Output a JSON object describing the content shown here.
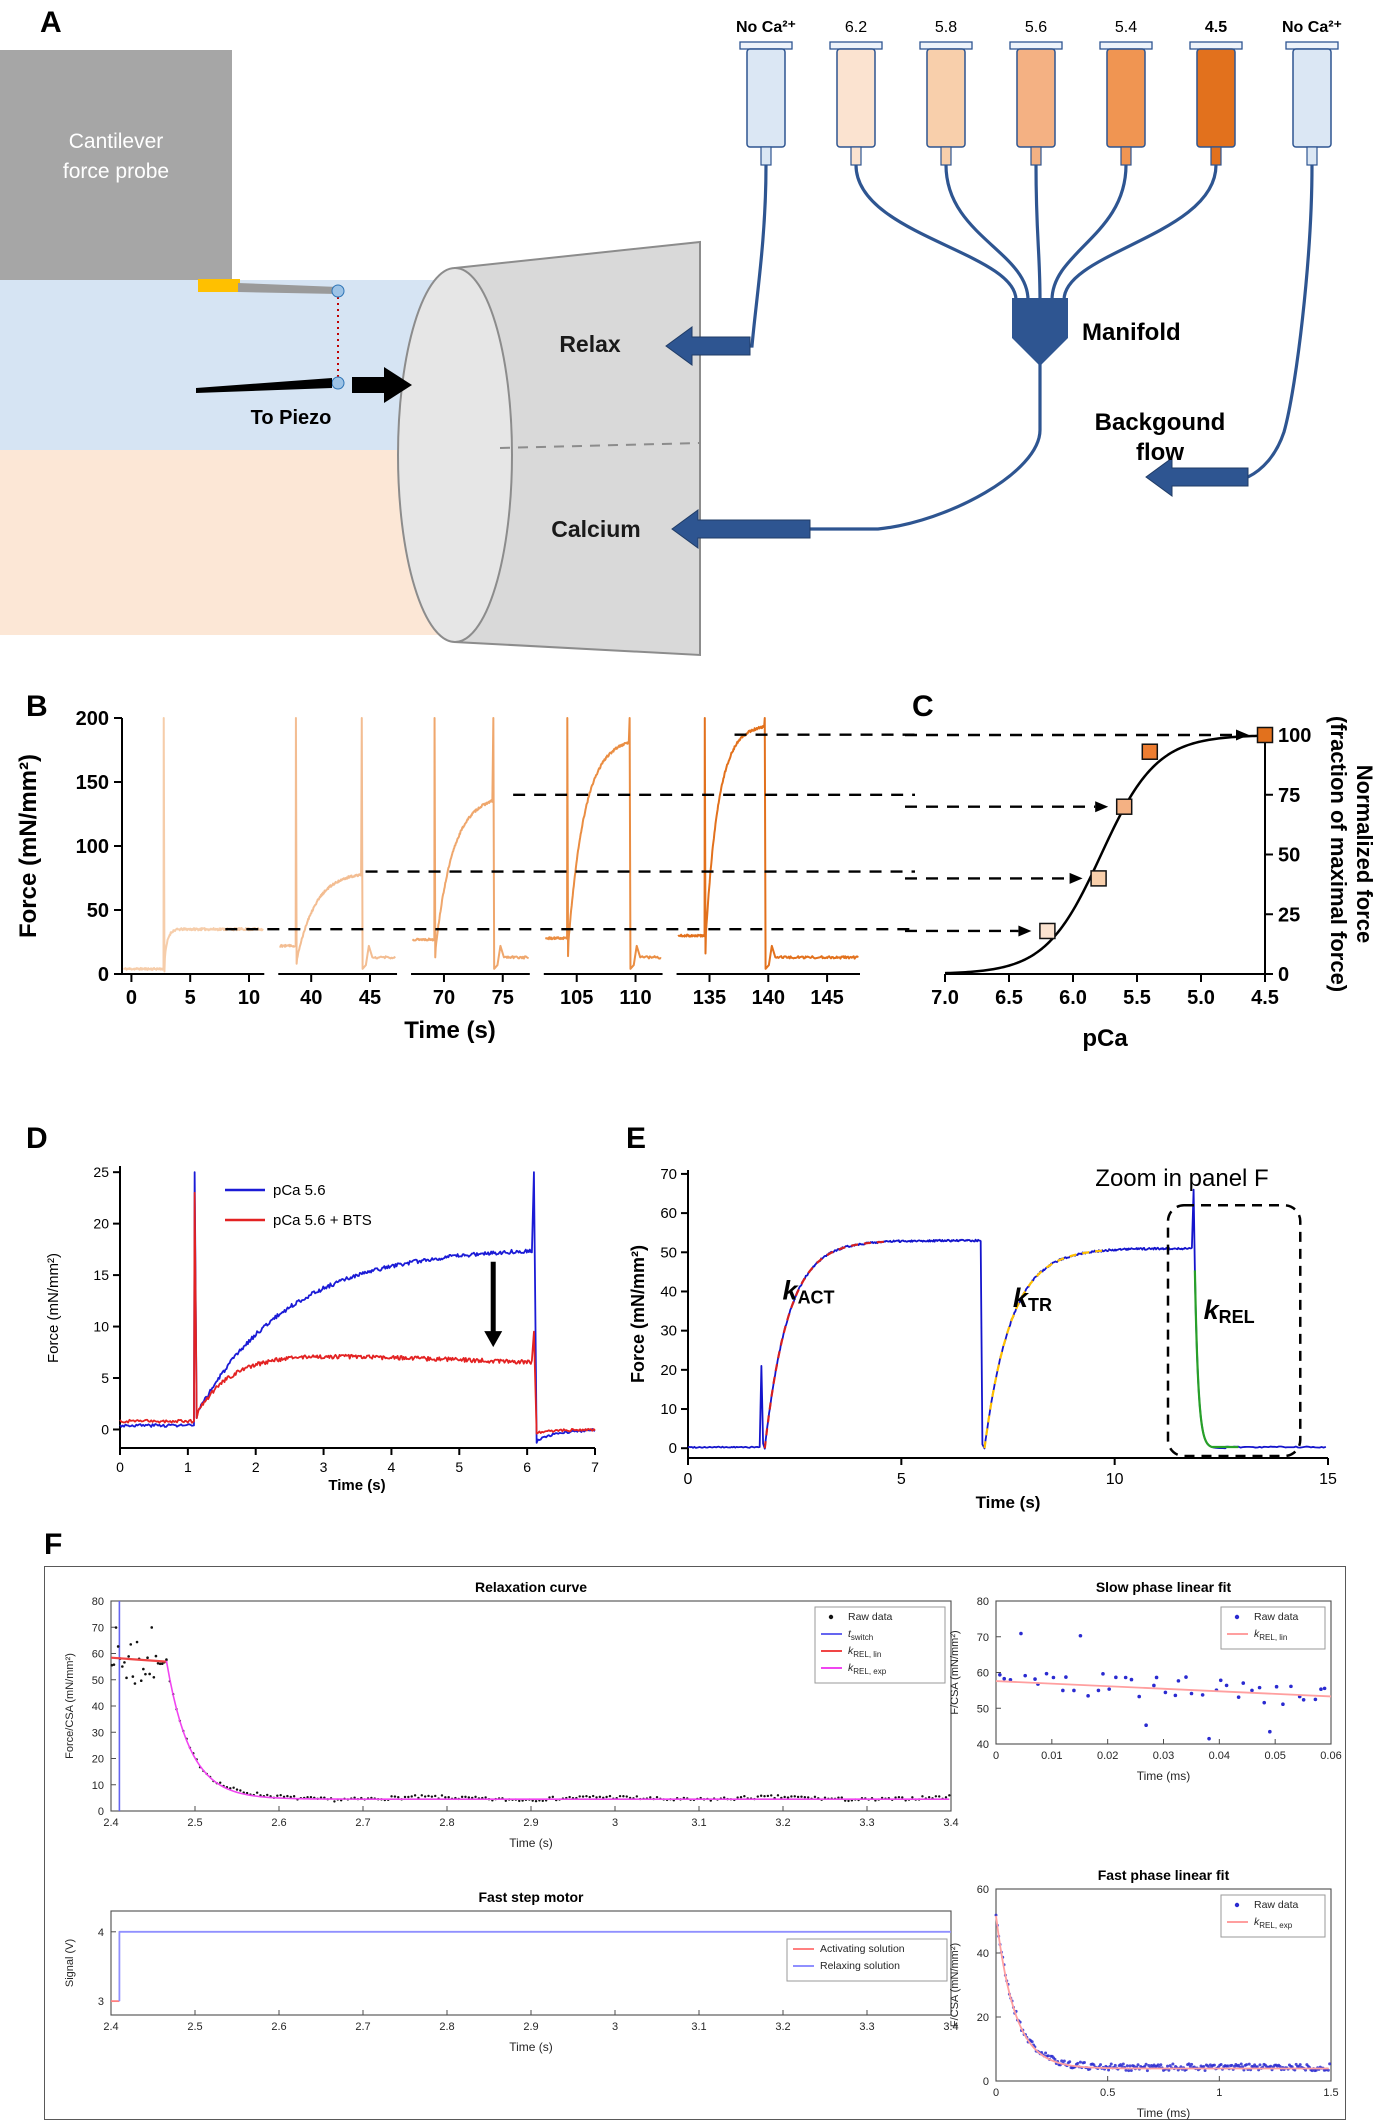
{
  "figure": {
    "panel_labels": {
      "a": "A",
      "b": "B",
      "c": "C",
      "d": "D",
      "e": "E",
      "f": "F"
    }
  },
  "panel_a": {
    "cantilever_line1": "Cantilever",
    "cantilever_line2": "force probe",
    "to_piezo": "To Piezo",
    "relax": "Relax",
    "calcium": "Calcium",
    "manifold": "Manifold",
    "background_line1": "Backgound",
    "background_line2": "flow",
    "syringes": [
      {
        "label": "No Ca²⁺",
        "bold": true,
        "fill": "#dbe7f4"
      },
      {
        "label": "6.2",
        "bold": false,
        "fill": "#fbe3d0"
      },
      {
        "label": "5.8",
        "bold": false,
        "fill": "#f8cfab"
      },
      {
        "label": "5.6",
        "bold": false,
        "fill": "#f4b183"
      },
      {
        "label": "5.4",
        "bold": false,
        "fill": "#f09552"
      },
      {
        "label": "4.5",
        "bold": true,
        "fill": "#e2711d"
      },
      {
        "label": "No Ca²⁺",
        "bold": true,
        "fill": "#dbe7f4"
      }
    ],
    "colors": {
      "tube": "#2e5591",
      "gray_box": "#a6a6a6",
      "funnel": "#d9d9d9",
      "bath_top": "#d6e4f3",
      "bath_bottom": "#fce7d6",
      "gold": "#ffc000",
      "bead": "#9dc3e6"
    }
  },
  "chart_data": [
    {
      "id": "panel_b",
      "type": "line",
      "xlabel": "Time (s)",
      "ylabel": "Force (mN/mm²)",
      "ylim": [
        0,
        200
      ],
      "yticks": [
        0,
        50,
        100,
        150,
        200
      ],
      "spike_peak": 200,
      "segments": [
        {
          "trange": [
            -0.8,
            11.3
          ],
          "ticks": [
            0,
            5,
            10
          ],
          "color": "#f6cdaa",
          "baseline": 4,
          "spike_t": 2.75,
          "plateau": 35,
          "rise_tau": 0.25,
          "drop_t": null
        },
        {
          "trange": [
            37.2,
            47.3
          ],
          "ticks": [
            40,
            45
          ],
          "color": "#f3bd92",
          "baseline": 22,
          "spike_t": 38.7,
          "plateau": 80,
          "rise_tau": 1.6,
          "drop_t": 44.3
        },
        {
          "trange": [
            67.2,
            77.3
          ],
          "ticks": [
            70,
            75
          ],
          "color": "#efa76d",
          "baseline": 27,
          "spike_t": 69.2,
          "plateau": 140,
          "rise_tau": 1.5,
          "drop_t": 74.2
        },
        {
          "trange": [
            102.2,
            112.3
          ],
          "ticks": [
            105,
            110
          ],
          "color": "#ea8d42",
          "baseline": 28,
          "spike_t": 104.2,
          "plateau": 185,
          "rise_tau": 1.4,
          "drop_t": 109.5
        },
        {
          "trange": [
            132.2,
            147.8
          ],
          "ticks": [
            135,
            140,
            145
          ],
          "color": "#e2711d",
          "baseline": 30,
          "spike_t": 134.6,
          "plateau": 195,
          "rise_tau": 1.1,
          "drop_t": 139.7
        }
      ],
      "dashed_lines": [
        {
          "y": 35,
          "x_start_frac": 0.14
        },
        {
          "y": 80,
          "x_start_frac": 0.33
        },
        {
          "y": 140,
          "x_start_frac": 0.53
        },
        {
          "y": 187,
          "x_start_frac": 0.83
        }
      ]
    },
    {
      "id": "panel_c",
      "type": "scatter",
      "xlabel": "pCa",
      "ylabel_line1": "Normalized force",
      "ylabel_line2": "(fraction of maximal force)",
      "xticks": [
        "7.0",
        "6.5",
        "6.0",
        "5.5",
        "5.0",
        "4.5"
      ],
      "xlim": [
        7.0,
        4.5
      ],
      "ylim": [
        0,
        100
      ],
      "yticks": [
        0,
        25,
        50,
        75,
        100
      ],
      "sigmoid": {
        "pca50": 5.78,
        "hill": 2.0
      },
      "points": [
        {
          "pca": 6.2,
          "value": 18,
          "fill": "#fbe3d0"
        },
        {
          "pca": 5.8,
          "value": 40,
          "fill": "#f8cfab"
        },
        {
          "pca": 5.6,
          "value": 70,
          "fill": "#f4b183"
        },
        {
          "pca": 5.4,
          "value": 93,
          "fill": "#ed7d31"
        },
        {
          "pca": 4.5,
          "value": 100,
          "fill": "#e2711d"
        }
      ],
      "arrows_to": [
        6.2,
        5.8,
        5.6,
        4.5
      ]
    },
    {
      "id": "panel_d",
      "type": "line",
      "xlabel": "Time (s)",
      "ylabel": "Force (mN/mm²)",
      "xlim": [
        0,
        7
      ],
      "xticks": [
        0,
        1,
        2,
        3,
        4,
        5,
        6,
        7
      ],
      "ylim": [
        0,
        25
      ],
      "yticks": [
        0,
        5,
        10,
        15,
        20,
        25
      ],
      "legend": [
        {
          "label": "pCa 5.6",
          "color": "#1b1bd6"
        },
        {
          "label": "pCa 5.6 + BTS",
          "color": "#e32222"
        }
      ],
      "series": [
        {
          "name": "pCa 5.6",
          "color": "#1b1bd6",
          "baseline": 0.4,
          "spike_t": 1.1,
          "spike_peak": 25,
          "plateau": 17.8,
          "rise_tau": 1.35,
          "sag_rate": 0,
          "end_t": 6.1,
          "end_peak": 25,
          "undershoot": -1.3
        },
        {
          "name": "pCa 5.6 + BTS",
          "color": "#e32222",
          "baseline": 0.8,
          "spike_t": 1.1,
          "spike_peak": 23,
          "plateau": 7.3,
          "rise_tau": 0.5,
          "sag_rate": 0.22,
          "end_t": 6.1,
          "end_peak": 9.5,
          "undershoot": -0.4
        }
      ],
      "arrow": {
        "x": 5.5,
        "y_top": 16.3,
        "y_bottom": 8.0
      }
    },
    {
      "id": "panel_e",
      "type": "line",
      "xlabel": "Time (s)",
      "ylabel": "Force (mN/mm²)",
      "xlim": [
        0,
        15
      ],
      "xticks": [
        0,
        5,
        10,
        15
      ],
      "ylim": [
        0,
        70
      ],
      "yticks": [
        0,
        10,
        20,
        30,
        40,
        50,
        60,
        70
      ],
      "trace_color": "#1414cc",
      "zoom_label": "Zoom in panel F",
      "events": {
        "pre_spike_t": 1.72,
        "pre_spike_peak": 21,
        "act_start": 1.8,
        "act_tau": 0.55,
        "plateau": 53,
        "slack_t": 6.88,
        "tr_start": 6.95,
        "tr_tau": 0.62,
        "tr_plateau": 51,
        "rel_t": 11.85,
        "rel_peak": 66,
        "rel_tau": 0.08
      },
      "fits": [
        {
          "sub": "ACT",
          "color": "#d62020",
          "dashed": true
        },
        {
          "sub": "TR",
          "color": "#ffc000",
          "dashed": true
        },
        {
          "sub": "REL",
          "color": "#28a028",
          "dashed": false
        }
      ],
      "k_labels": [
        {
          "main": "k",
          "sub": "ACT",
          "x": 2.45,
          "y": 38
        },
        {
          "main": "k",
          "sub": "TR",
          "x": 7.85,
          "y": 36
        },
        {
          "main": "k",
          "sub": "REL",
          "x": 12.32,
          "y": 33
        }
      ],
      "zoom_box": {
        "x0": 11.25,
        "x1": 14.35,
        "y0": -2,
        "y1": 62
      }
    },
    {
      "id": "panel_f1",
      "title": "Relaxation curve",
      "xlabel": "Time (s)",
      "ylabel": "Force/CSA (mN/mm²)",
      "xlim": [
        2.4,
        3.4
      ],
      "xticks": [
        "2.4",
        "2.5",
        "2.6",
        "2.7",
        "2.8",
        "2.9",
        "3",
        "3.1",
        "3.2",
        "3.3",
        "3.4"
      ],
      "ylim": [
        0,
        80
      ],
      "yticks": [
        0,
        10,
        20,
        30,
        40,
        50,
        60,
        70,
        80
      ],
      "legend": [
        {
          "main": "Raw data",
          "sub": "",
          "type": "dot",
          "color": "#111111"
        },
        {
          "main": "t",
          "sub": "switch",
          "type": "line",
          "color": "#6565f0"
        },
        {
          "main": "k",
          "sub": "REL, lin",
          "type": "line",
          "color": "#f04545"
        },
        {
          "main": "k",
          "sub": "REL, exp",
          "type": "line",
          "color": "#f045f0"
        }
      ],
      "t_switch": 2.41,
      "pre_level": 57.5,
      "drop_start": 2.466,
      "decay_tau": 0.028,
      "final_level": 4.8
    },
    {
      "id": "panel_f2",
      "title": "Slow phase linear fit",
      "xlabel": "Time (ms)",
      "ylabel": "F/CSA (mN/mm²)",
      "xlim": [
        0,
        0.06
      ],
      "xticks": [
        "0",
        "0.01",
        "0.02",
        "0.03",
        "0.04",
        "0.05",
        "0.06"
      ],
      "ylim": [
        40,
        80
      ],
      "yticks": [
        40,
        50,
        60,
        70,
        80
      ],
      "legend": [
        {
          "main": "Raw data",
          "sub": "",
          "type": "dot",
          "color": "#2a2ad0"
        },
        {
          "main": "k",
          "sub": "REL, lin",
          "type": "line",
          "color": "#ff9f9f"
        }
      ],
      "fit_line": {
        "y0": 57.6,
        "y1": 53.3
      },
      "scatter": {
        "n": 48,
        "trend_start": 57.5,
        "trend_end": 53.5,
        "spread": 7
      }
    },
    {
      "id": "panel_f3",
      "title": "Fast step motor",
      "xlabel": "Time (s)",
      "ylabel": "Signal (V)",
      "xlim": [
        2.4,
        3.4
      ],
      "xticks": [
        "2.4",
        "2.5",
        "2.6",
        "2.7",
        "2.8",
        "2.9",
        "3",
        "3.1",
        "3.2",
        "3.3",
        "3.4"
      ],
      "ylim": [
        2.8,
        4.3
      ],
      "yticks": [
        3,
        4
      ],
      "legend": [
        {
          "main": "Activating solution",
          "sub": "",
          "type": "line",
          "color": "#ff8080"
        },
        {
          "main": "Relaxing solution",
          "sub": "",
          "type": "line",
          "color": "#9090ff"
        }
      ],
      "step_t": 2.41,
      "low": 3,
      "high": 4
    },
    {
      "id": "panel_f4",
      "title": "Fast phase linear fit",
      "xlabel": "Time (ms)",
      "ylabel": "F/CSA (mN/mm²)",
      "xlim": [
        0,
        1.5
      ],
      "xticks": [
        "0",
        "0.5",
        "1",
        "1.5"
      ],
      "ylim": [
        0,
        60
      ],
      "yticks": [
        0,
        20,
        40,
        60
      ],
      "legend": [
        {
          "main": "Raw data",
          "sub": "",
          "type": "dot",
          "color": "#2a2ad0"
        },
        {
          "main": "k",
          "sub": "REL, exp",
          "type": "line",
          "color": "#ff9f9f"
        }
      ],
      "decay": {
        "start": 52,
        "floor": 4.3,
        "tau": 0.085
      }
    }
  ]
}
